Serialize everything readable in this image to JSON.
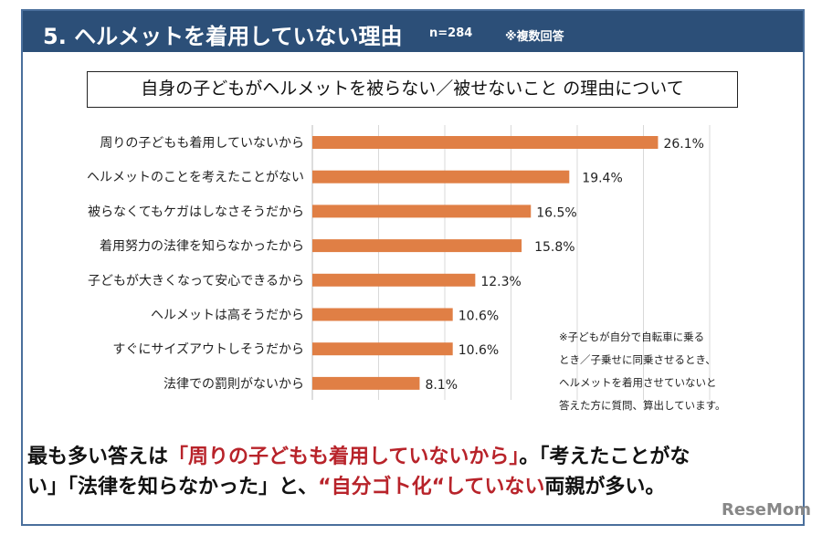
{
  "header": {
    "title": "5. ヘルメットを着用していない理由",
    "n": "n=284",
    "note": "※複数回答"
  },
  "subtitle": "自身の子どもがヘルメットを被らない／被せないこと の理由について",
  "chart_data": {
    "type": "bar",
    "orientation": "horizontal",
    "categories": [
      "周りの子どもも着用していないから",
      "ヘルメットのことを考えたことがない",
      "被らなくてもケガはしなさそうだから",
      "着用努力の法律を知らなかったから",
      "子どもが大きくなって安心できるから",
      "ヘルメットは高そうだから",
      "すぐにサイズアウトしそうだから",
      "法律での罰則がないから"
    ],
    "values": [
      26.1,
      19.4,
      16.5,
      15.8,
      12.3,
      10.6,
      10.6,
      8.1
    ],
    "data_labels": [
      "26.1%",
      "19.4%",
      "16.5%",
      "15.8%",
      "12.3%",
      "10.6%",
      "10.6%",
      "8.1%"
    ],
    "xlim": [
      0,
      30
    ],
    "grid": true,
    "bar_color": "#e07f45"
  },
  "note_lines": [
    "※子どもが自分で自転車に乗る",
    "とき／子乗せに同乗させるとき、",
    "ヘルメットを着用させていないと",
    "答えた方に質問、算出しています。"
  ],
  "summary": {
    "line1": [
      {
        "t": "最も多い答えは",
        "red": false
      },
      {
        "t": "「周りの子どもも着用していないから」",
        "red": true
      },
      {
        "t": "。「考えたことがな",
        "red": false
      }
    ],
    "line2": [
      {
        "t": "い」「法律を知らなかった」と、",
        "red": false
      },
      {
        "t": "“自分ゴト化“していない",
        "red": true
      },
      {
        "t": "両親が多い。",
        "red": false
      }
    ]
  },
  "logo": "ReseMom",
  "colors": {
    "header_bg": "#2c4f78",
    "accent_red": "#b8232a"
  }
}
